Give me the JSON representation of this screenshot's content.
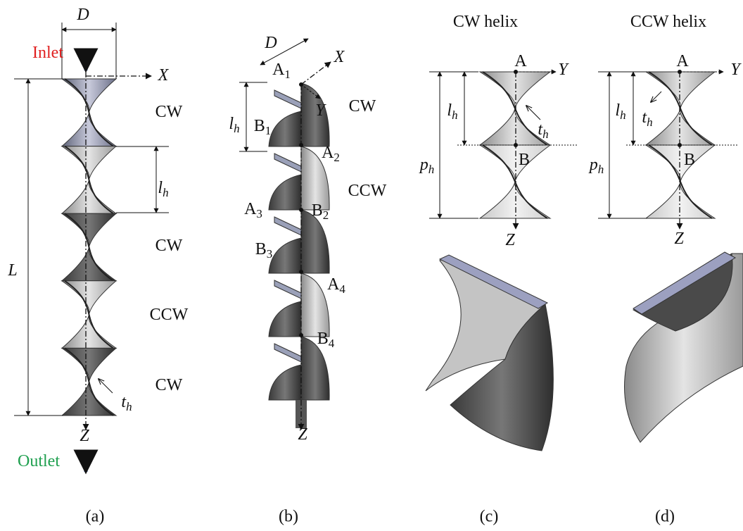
{
  "panels": [
    {
      "caption": "(a)",
      "labels": [
        {
          "text": "D"
        },
        {
          "text": "Inlet"
        },
        {
          "text": "X"
        },
        {
          "text": "CW"
        },
        {
          "text": "l",
          "sub": "h"
        },
        {
          "text": "L"
        },
        {
          "text": "CW"
        },
        {
          "text": "CCW"
        },
        {
          "text": "CW"
        },
        {
          "text": "t",
          "sub": "h"
        },
        {
          "text": "Z"
        },
        {
          "text": "Outlet"
        }
      ]
    },
    {
      "caption": "(b)",
      "labels": [
        {
          "text": "D"
        },
        {
          "text": "A",
          "sub": "1"
        },
        {
          "text": "X"
        },
        {
          "text": "Y"
        },
        {
          "text": "CW"
        },
        {
          "text": "l",
          "sub": "h"
        },
        {
          "text": "B",
          "sub": "1"
        },
        {
          "text": "A",
          "sub": "2"
        },
        {
          "text": "CCW"
        },
        {
          "text": "A",
          "sub": "3"
        },
        {
          "text": "B",
          "sub": "2"
        },
        {
          "text": "B",
          "sub": "3"
        },
        {
          "text": "A",
          "sub": "4"
        },
        {
          "text": "B",
          "sub": "4"
        },
        {
          "text": "Z"
        }
      ]
    },
    {
      "caption": "(c)",
      "labels": [
        {
          "text": "CW helix"
        },
        {
          "text": "A"
        },
        {
          "text": "Y"
        },
        {
          "text": "l",
          "sub": "h"
        },
        {
          "text": "t",
          "sub": "h"
        },
        {
          "text": "p",
          "sub": "h"
        },
        {
          "text": "B"
        },
        {
          "text": "Z"
        }
      ]
    },
    {
      "caption": "(d)",
      "labels": [
        {
          "text": "CCW helix"
        },
        {
          "text": "A"
        },
        {
          "text": "Y"
        },
        {
          "text": "l",
          "sub": "h"
        },
        {
          "text": "t",
          "sub": "h"
        },
        {
          "text": "p",
          "sub": "h"
        },
        {
          "text": "B"
        },
        {
          "text": "Z"
        }
      ]
    }
  ]
}
